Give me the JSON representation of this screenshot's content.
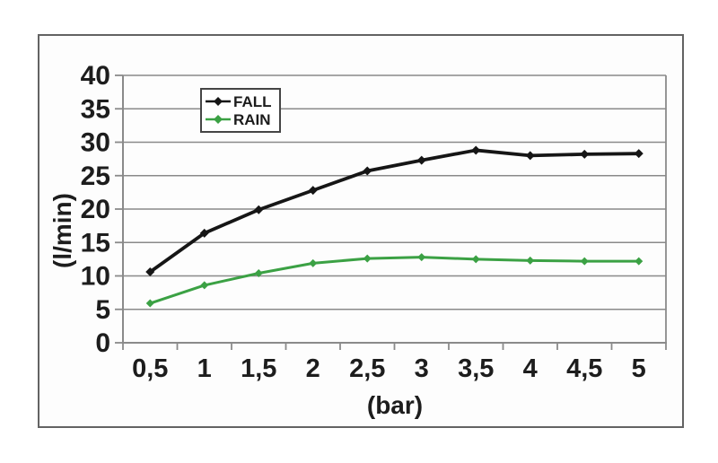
{
  "chart_data": {
    "type": "line",
    "title": "",
    "xlabel": "(bar)",
    "ylabel": "(l/min)",
    "x_values": [
      0.5,
      1,
      1.5,
      2,
      2.5,
      3,
      3.5,
      4,
      4.5,
      5
    ],
    "x_tick_labels": [
      "0,5",
      "1",
      "1,5",
      "2",
      "2,5",
      "3",
      "3,5",
      "4",
      "4,5",
      "5"
    ],
    "y_ticks": [
      0,
      5,
      10,
      15,
      20,
      25,
      30,
      35,
      40
    ],
    "ylim": [
      0,
      40
    ],
    "grid": "horizontal",
    "legend_position": "top-center-inside",
    "series": [
      {
        "name": "FALL",
        "color": "#161616",
        "marker": "diamond",
        "values": [
          10.6,
          16.4,
          19.9,
          22.8,
          25.7,
          27.3,
          28.8,
          28.0,
          28.2,
          28.3
        ]
      },
      {
        "name": "RAIN",
        "color": "#3ba144",
        "marker": "diamond",
        "values": [
          5.9,
          8.6,
          10.4,
          11.9,
          12.6,
          12.8,
          12.5,
          12.3,
          12.2,
          12.2
        ]
      }
    ],
    "colors": {
      "grid": "#8a8a8a",
      "axis": "#8a8a8a",
      "tick_text": "#1d1d1d",
      "frame": "#636363",
      "background": "#ffffff"
    }
  }
}
